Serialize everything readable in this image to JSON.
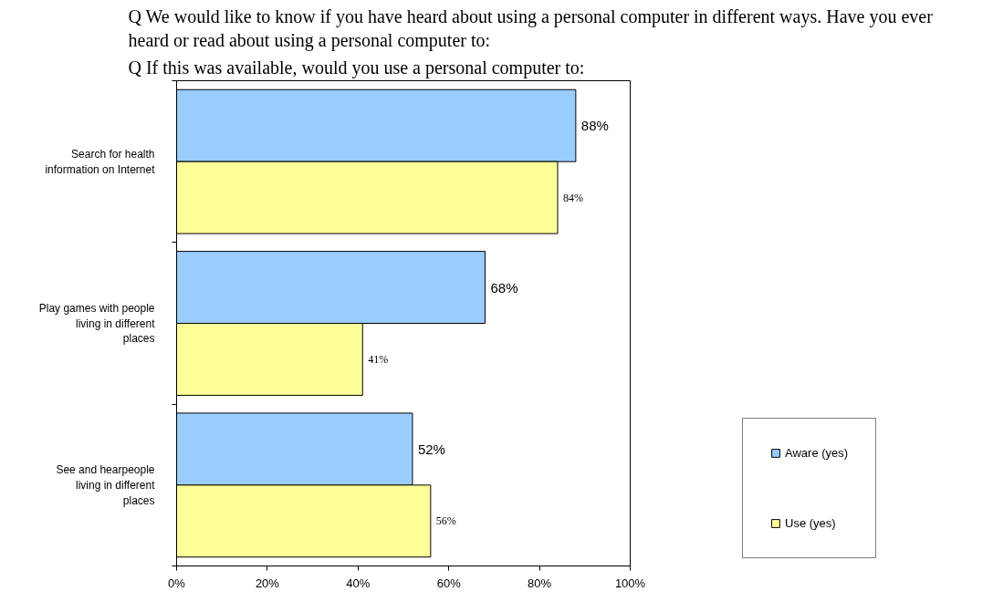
{
  "chart_data": {
    "type": "bar",
    "orientation": "horizontal",
    "title": "Q We would like to know if you have heard about using a personal computer in different ways.  Have you ever heard or read about using a personal computer to:",
    "subtitle": "Q If this was available, would you use a personal computer to:",
    "categories": [
      "Search for health information on Internet",
      "Play games with people living in different places",
      "See and hearpeople living in different places"
    ],
    "series": [
      {
        "name": "Aware (yes)",
        "color": "#99ccff",
        "values": [
          88,
          68,
          52
        ],
        "value_labels": [
          "88%",
          "68%",
          "52%"
        ]
      },
      {
        "name": "Use (yes)",
        "color": "#ffff99",
        "values": [
          84,
          41,
          56
        ],
        "value_labels": [
          "84%",
          "41%",
          "56%"
        ]
      }
    ],
    "xlim": [
      0,
      100
    ],
    "xticks": [
      {
        "value": 0,
        "label": "0%"
      },
      {
        "value": 20,
        "label": "20%"
      },
      {
        "value": 40,
        "label": "40%"
      },
      {
        "value": 60,
        "label": "60%"
      },
      {
        "value": 80,
        "label": "80%"
      },
      {
        "value": 100,
        "label": "100%"
      }
    ],
    "legend": "right"
  }
}
